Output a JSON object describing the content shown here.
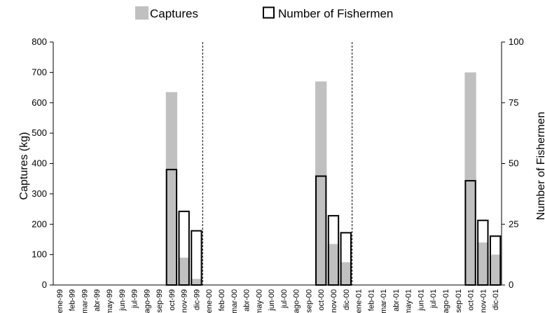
{
  "chart_data": {
    "type": "bar",
    "legend": {
      "placement": "top-center",
      "entries": [
        "Captures",
        "Number of Fishermen"
      ]
    },
    "xlabel": "",
    "ylabel": "Captures (kg)",
    "y2label": "Number of Fishermen",
    "ylim": [
      0,
      800
    ],
    "y2lim": [
      0,
      100
    ],
    "yticks": [
      0,
      100,
      200,
      300,
      400,
      500,
      600,
      700,
      800
    ],
    "y2ticks": [
      0,
      25,
      50,
      75,
      100
    ],
    "grid": false,
    "separators_after_index": [
      11,
      23
    ],
    "categories": [
      "ene-99",
      "feb-99",
      "mar-99",
      "abr-99",
      "may-99",
      "jun-99",
      "jul-99",
      "ago-99",
      "sep-99",
      "oct-99",
      "nov-99",
      "dic-99",
      "ene-00",
      "feb-00",
      "mar-00",
      "abr-00",
      "may-00",
      "jun-00",
      "jul-00",
      "ago-00",
      "sep-00",
      "oct-00",
      "nov-00",
      "dic-00",
      "ene-01",
      "feb-01",
      "mar-01",
      "abr-01",
      "may-01",
      "jun-01",
      "jul-01",
      "ago-01",
      "sep-01",
      "oct-01",
      "nov-01",
      "dic-01"
    ],
    "series": [
      {
        "name": "Captures",
        "axis": "left",
        "color": "#c0c0c0",
        "values": [
          0,
          0,
          0,
          0,
          0,
          0,
          0,
          0,
          0,
          635,
          90,
          20,
          0,
          0,
          0,
          0,
          0,
          0,
          0,
          0,
          0,
          670,
          135,
          75,
          0,
          0,
          0,
          0,
          0,
          0,
          0,
          0,
          0,
          700,
          140,
          100
        ]
      },
      {
        "name": "Number of Fishermen",
        "axis": "right",
        "color": "#000000",
        "values": [
          0,
          0,
          0,
          0,
          0,
          0,
          0,
          0,
          0,
          47.5,
          30.3,
          22.3,
          0,
          0,
          0,
          0,
          0,
          0,
          0,
          0,
          0,
          44.8,
          28.5,
          21.5,
          0,
          0,
          0,
          0,
          0,
          0,
          0,
          0,
          0,
          42.9,
          26.6,
          20.1
        ]
      }
    ]
  }
}
